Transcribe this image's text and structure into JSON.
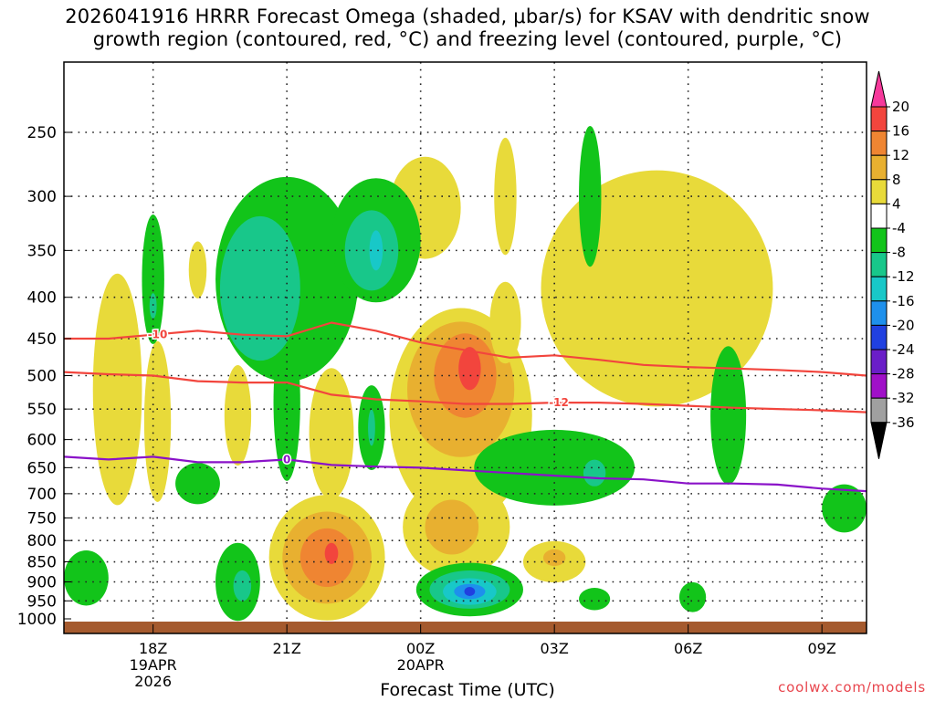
{
  "chart_data": {
    "type": "heatmap",
    "title_line1": "2026041916 HRRR Forecast Omega (shaded, μbar/s) for KSAV with dendritic snow",
    "title_line2": "growth region (contoured, red, °C) and freezing level (contoured, purple, °C)",
    "xlabel": "Forecast Time (UTC)",
    "ylabel": "",
    "x_range_hours": [
      -2.0,
      16.0
    ],
    "y_levels_hpa": [
      250,
      300,
      350,
      400,
      450,
      500,
      550,
      600,
      650,
      700,
      750,
      800,
      850,
      900,
      950,
      1000
    ],
    "y_tick_labels": [
      "250",
      "300",
      "350",
      "400",
      "450",
      "500",
      "550",
      "600",
      "650",
      "700",
      "750",
      "800",
      "850",
      "900",
      "950",
      "1000"
    ],
    "x_ticks": [
      {
        "hour": 0,
        "lines": [
          "18Z",
          "19APR",
          "2026"
        ]
      },
      {
        "hour": 3,
        "lines": [
          "21Z"
        ]
      },
      {
        "hour": 6,
        "lines": [
          "00Z",
          "20APR"
        ]
      },
      {
        "hour": 9,
        "lines": [
          "03Z"
        ]
      },
      {
        "hour": 12,
        "lines": [
          "06Z"
        ]
      },
      {
        "hour": 15,
        "lines": [
          "09Z"
        ]
      }
    ],
    "colorbar": {
      "labels": [
        "20",
        "16",
        "12",
        "8",
        "4",
        "-4",
        "-8",
        "-12",
        "-16",
        "-20",
        "-24",
        "-28",
        "-32",
        "-36"
      ],
      "boundaries": [
        20,
        16,
        12,
        8,
        4,
        -4,
        -8,
        -12,
        -16,
        -20,
        -24,
        -28,
        -32,
        -36
      ],
      "colors": [
        "#f6399b",
        "#f2453d",
        "#ef8532",
        "#e8b030",
        "#e8da3a",
        "#ffffff",
        "#12c41a",
        "#18c78a",
        "#18c8c8",
        "#1e90ec",
        "#2040e0",
        "#6a1ec8",
        "#a010c8",
        "#a0a0a0",
        "#000000"
      ]
    },
    "omega_regions": [
      {
        "level": 4,
        "color": "#e8da3a",
        "center": [
          -0.8,
          520
        ],
        "rx_h": 0.55,
        "ry_hpa": 170
      },
      {
        "level": 4,
        "color": "#e8da3a",
        "center": [
          0.1,
          570
        ],
        "rx_h": 0.3,
        "ry_hpa": 130
      },
      {
        "level": 4,
        "color": "#e8da3a",
        "center": [
          1.0,
          370
        ],
        "rx_h": 0.2,
        "ry_hpa": 30
      },
      {
        "level": 4,
        "color": "#e8da3a",
        "center": [
          1.9,
          560
        ],
        "rx_h": 0.3,
        "ry_hpa": 80
      },
      {
        "level": 4,
        "color": "#e8da3a",
        "center": [
          4.0,
          590
        ],
        "rx_h": 0.5,
        "ry_hpa": 110
      },
      {
        "level": 4,
        "color": "#e8da3a",
        "center": [
          3.9,
          840
        ],
        "rx_h": 1.3,
        "ry_hpa": 150
      },
      {
        "level": 8,
        "color": "#e8b030",
        "center": [
          3.9,
          840
        ],
        "rx_h": 1.0,
        "ry_hpa": 110
      },
      {
        "level": 12,
        "color": "#ef8532",
        "center": [
          3.9,
          840
        ],
        "rx_h": 0.6,
        "ry_hpa": 70
      },
      {
        "level": 16,
        "color": "#f2453d",
        "center": [
          4.0,
          830
        ],
        "rx_h": 0.15,
        "ry_hpa": 25
      },
      {
        "level": 4,
        "color": "#e8da3a",
        "center": [
          6.9,
          560
        ],
        "rx_h": 1.6,
        "ry_hpa": 170
      },
      {
        "level": 8,
        "color": "#e8b030",
        "center": [
          6.9,
          520
        ],
        "rx_h": 1.2,
        "ry_hpa": 100
      },
      {
        "level": 12,
        "color": "#ef8532",
        "center": [
          7.0,
          500
        ],
        "rx_h": 0.7,
        "ry_hpa": 60
      },
      {
        "level": 16,
        "color": "#f2453d",
        "center": [
          7.1,
          490
        ],
        "rx_h": 0.25,
        "ry_hpa": 30
      },
      {
        "level": 4,
        "color": "#e8da3a",
        "center": [
          6.8,
          770
        ],
        "rx_h": 1.2,
        "ry_hpa": 110
      },
      {
        "level": 8,
        "color": "#e8b030",
        "center": [
          6.7,
          770
        ],
        "rx_h": 0.6,
        "ry_hpa": 60
      },
      {
        "level": 4,
        "color": "#e8da3a",
        "center": [
          6.1,
          310
        ],
        "rx_h": 0.8,
        "ry_hpa": 45
      },
      {
        "level": 4,
        "color": "#e8da3a",
        "center": [
          7.9,
          300
        ],
        "rx_h": 0.25,
        "ry_hpa": 50
      },
      {
        "level": 4,
        "color": "#e8da3a",
        "center": [
          7.9,
          430
        ],
        "rx_h": 0.35,
        "ry_hpa": 50
      },
      {
        "level": 4,
        "color": "#e8da3a",
        "center": [
          9.0,
          850
        ],
        "rx_h": 0.7,
        "ry_hpa": 50
      },
      {
        "level": 8,
        "color": "#e8b030",
        "center": [
          9.0,
          840
        ],
        "rx_h": 0.25,
        "ry_hpa": 20
      },
      {
        "level": 4,
        "color": "#e8da3a",
        "center": [
          11.3,
          390
        ],
        "rx_h": 2.6,
        "ry_hpa": 130
      },
      {
        "level": -4,
        "color": "#12c41a",
        "center": [
          3.0,
          380
        ],
        "rx_h": 1.6,
        "ry_hpa": 110
      },
      {
        "level": -4,
        "color": "#12c41a",
        "center": [
          3.0,
          540
        ],
        "rx_h": 0.3,
        "ry_hpa": 120
      },
      {
        "level": -4,
        "color": "#12c41a",
        "center": [
          5.0,
          340
        ],
        "rx_h": 1.0,
        "ry_hpa": 60
      },
      {
        "level": -8,
        "color": "#18c78a",
        "center": [
          2.4,
          390
        ],
        "rx_h": 0.9,
        "ry_hpa": 80
      },
      {
        "level": -8,
        "color": "#18c78a",
        "center": [
          4.9,
          350
        ],
        "rx_h": 0.6,
        "ry_hpa": 40
      },
      {
        "level": -12,
        "color": "#18c8c8",
        "center": [
          5.0,
          350
        ],
        "rx_h": 0.15,
        "ry_hpa": 20
      },
      {
        "level": -4,
        "color": "#12c41a",
        "center": [
          0.0,
          380
        ],
        "rx_h": 0.25,
        "ry_hpa": 70
      },
      {
        "level": -8,
        "color": "#18c78a",
        "center": [
          0.0,
          410
        ],
        "rx_h": 0.08,
        "ry_hpa": 15
      },
      {
        "level": -4,
        "color": "#12c41a",
        "center": [
          -1.5,
          890
        ],
        "rx_h": 0.5,
        "ry_hpa": 70
      },
      {
        "level": -4,
        "color": "#12c41a",
        "center": [
          1.0,
          680
        ],
        "rx_h": 0.5,
        "ry_hpa": 40
      },
      {
        "level": -4,
        "color": "#12c41a",
        "center": [
          1.9,
          900
        ],
        "rx_h": 0.5,
        "ry_hpa": 100
      },
      {
        "level": -8,
        "color": "#18c78a",
        "center": [
          2.0,
          910
        ],
        "rx_h": 0.2,
        "ry_hpa": 40
      },
      {
        "level": -4,
        "color": "#12c41a",
        "center": [
          4.9,
          580
        ],
        "rx_h": 0.3,
        "ry_hpa": 70
      },
      {
        "level": -8,
        "color": "#18c78a",
        "center": [
          4.9,
          580
        ],
        "rx_h": 0.08,
        "ry_hpa": 30
      },
      {
        "level": -4,
        "color": "#12c41a",
        "center": [
          9.0,
          650
        ],
        "rx_h": 1.8,
        "ry_hpa": 70
      },
      {
        "level": -8,
        "color": "#18c78a",
        "center": [
          9.9,
          660
        ],
        "rx_h": 0.25,
        "ry_hpa": 25
      },
      {
        "level": -4,
        "color": "#12c41a",
        "center": [
          7.1,
          920
        ],
        "rx_h": 1.2,
        "ry_hpa": 70
      },
      {
        "level": -8,
        "color": "#18c78a",
        "center": [
          7.1,
          920
        ],
        "rx_h": 0.9,
        "ry_hpa": 50
      },
      {
        "level": -12,
        "color": "#18c8c8",
        "center": [
          7.1,
          925
        ],
        "rx_h": 0.6,
        "ry_hpa": 35
      },
      {
        "level": -16,
        "color": "#1e90ec",
        "center": [
          7.1,
          925
        ],
        "rx_h": 0.35,
        "ry_hpa": 20
      },
      {
        "level": -20,
        "color": "#2040e0",
        "center": [
          7.1,
          925
        ],
        "rx_h": 0.12,
        "ry_hpa": 12
      },
      {
        "level": -4,
        "color": "#12c41a",
        "center": [
          9.8,
          300
        ],
        "rx_h": 0.25,
        "ry_hpa": 60
      },
      {
        "level": -4,
        "color": "#12c41a",
        "center": [
          9.9,
          945
        ],
        "rx_h": 0.35,
        "ry_hpa": 30
      },
      {
        "level": -4,
        "color": "#12c41a",
        "center": [
          12.1,
          940
        ],
        "rx_h": 0.3,
        "ry_hpa": 40
      },
      {
        "level": -4,
        "color": "#12c41a",
        "center": [
          12.9,
          560
        ],
        "rx_h": 0.4,
        "ry_hpa": 110
      },
      {
        "level": -4,
        "color": "#12c41a",
        "center": [
          15.5,
          730
        ],
        "rx_h": 0.5,
        "ry_hpa": 50
      }
    ],
    "contours": [
      {
        "name": "-10 °C isotherm",
        "label": "-10",
        "color": "#f2453d",
        "points": [
          [
            -2.0,
            450
          ],
          [
            -1.0,
            450
          ],
          [
            0.0,
            445
          ],
          [
            1.0,
            440
          ],
          [
            2.0,
            445
          ],
          [
            3.0,
            447
          ],
          [
            4.0,
            430
          ],
          [
            5.0,
            440
          ],
          [
            6.0,
            455
          ],
          [
            7.0,
            465
          ],
          [
            8.0,
            475
          ],
          [
            9.0,
            472
          ],
          [
            10.0,
            478
          ],
          [
            11.0,
            485
          ],
          [
            12.0,
            488
          ],
          [
            13.0,
            490
          ],
          [
            14.0,
            492
          ],
          [
            15.0,
            495
          ],
          [
            16.0,
            500
          ]
        ]
      },
      {
        "name": "-12 °C isotherm",
        "label": "-12",
        "color": "#f2453d",
        "points": [
          [
            -2.0,
            495
          ],
          [
            -1.0,
            498
          ],
          [
            0.0,
            500
          ],
          [
            1.0,
            508
          ],
          [
            2.0,
            510
          ],
          [
            3.0,
            510
          ],
          [
            4.0,
            528
          ],
          [
            5.0,
            535
          ],
          [
            6.0,
            538
          ],
          [
            7.0,
            542
          ],
          [
            8.0,
            542
          ],
          [
            9.0,
            540
          ],
          [
            10.0,
            540
          ],
          [
            11.0,
            542
          ],
          [
            12.0,
            545
          ],
          [
            13.0,
            548
          ],
          [
            14.0,
            550
          ],
          [
            15.0,
            552
          ],
          [
            16.0,
            555
          ]
        ]
      },
      {
        "name": "Freezing level (0 °C)",
        "label": "0",
        "color": "#8a12c8",
        "points": [
          [
            -2.0,
            630
          ],
          [
            -1.0,
            635
          ],
          [
            0.0,
            630
          ],
          [
            1.0,
            640
          ],
          [
            2.0,
            640
          ],
          [
            3.0,
            635
          ],
          [
            4.0,
            645
          ],
          [
            5.0,
            648
          ],
          [
            6.0,
            650
          ],
          [
            7.0,
            655
          ],
          [
            8.0,
            660
          ],
          [
            9.0,
            665
          ],
          [
            10.0,
            670
          ],
          [
            11.0,
            672
          ],
          [
            12.0,
            680
          ],
          [
            13.0,
            680
          ],
          [
            14.0,
            682
          ],
          [
            15.0,
            690
          ],
          [
            16.0,
            695
          ]
        ]
      }
    ],
    "contour_labels": [
      {
        "text": "-10",
        "at": [
          0.1,
          445
        ],
        "color": "#f2453d"
      },
      {
        "text": "-12",
        "at": [
          9.1,
          540
        ],
        "color": "#f2453d"
      },
      {
        "text": "0",
        "at": [
          3.0,
          635
        ],
        "color": "#8a12c8"
      }
    ]
  },
  "ground_color": "#a55a2e",
  "credit": "coolwx.com/models"
}
